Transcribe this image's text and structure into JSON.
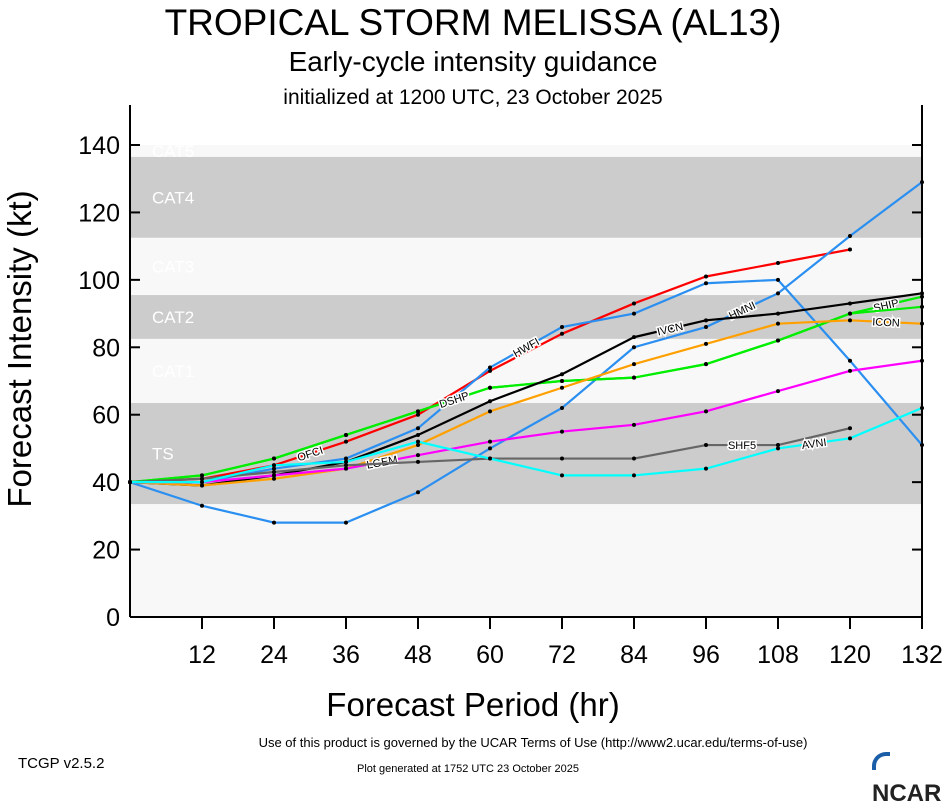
{
  "header": {
    "title": "TROPICAL STORM MELISSA (AL13)",
    "subtitle": "Early-cycle intensity guidance",
    "initialized": "initialized at 1200 UTC, 23 October 2025"
  },
  "footer": {
    "version": "TCGP v2.5.2",
    "terms": "Use of this product is governed by the UCAR Terms of Use (http://www2.ucar.edu/terms-of-use)",
    "generated": "Plot generated at 1752 UTC   23 October 2025",
    "logo": "NCAR"
  },
  "chart_data": {
    "type": "line",
    "xlabel": "Forecast Period (hr)",
    "ylabel": "Forecast Intensity (kt)",
    "xlim": [
      0,
      132
    ],
    "ylim": [
      0,
      140
    ],
    "xticks": [
      12,
      24,
      36,
      48,
      60,
      72,
      84,
      96,
      108,
      120,
      132
    ],
    "yticks": [
      0,
      20,
      40,
      60,
      80,
      100,
      120,
      140
    ],
    "bands": [
      {
        "label": "TS",
        "range": [
          34,
          63
        ],
        "color": "#cccccc"
      },
      {
        "label": "CAT1",
        "range": [
          64,
          82
        ],
        "color": "#f8f8f8"
      },
      {
        "label": "CAT2",
        "range": [
          83,
          95
        ],
        "color": "#cccccc"
      },
      {
        "label": "CAT3",
        "range": [
          96,
          112
        ],
        "color": "#f8f8f8"
      },
      {
        "label": "CAT4",
        "range": [
          113,
          136
        ],
        "color": "#cccccc"
      },
      {
        "label": "CAT5",
        "range": [
          137,
          140
        ],
        "color": "#f8f8f8"
      }
    ],
    "x": [
      0,
      12,
      24,
      36,
      48,
      60,
      72,
      84,
      96,
      108,
      120,
      132
    ],
    "series": [
      {
        "name": "OFCI",
        "color": "#ff0000",
        "values": [
          40,
          41,
          45,
          52,
          60,
          73,
          84,
          93,
          101,
          105,
          109,
          null
        ]
      },
      {
        "name": "HWFI",
        "color": "#2a8ff0",
        "values": [
          40,
          40,
          44,
          47,
          56,
          74,
          86,
          90,
          99,
          100,
          76,
          51
        ]
      },
      {
        "name": "HMNI",
        "color": "#2a8ff0",
        "values": [
          40,
          33,
          28,
          28,
          37,
          50,
          62,
          80,
          86,
          96,
          113,
          129
        ]
      },
      {
        "name": "SHIP",
        "color": "#00ee00",
        "values": [
          40,
          42,
          47,
          54,
          61,
          68,
          70,
          71,
          75,
          82,
          90,
          95
        ]
      },
      {
        "name": "DSHP",
        "color": "#00ee00",
        "values": [
          40,
          42,
          47,
          54,
          61,
          68,
          70,
          71,
          75,
          82,
          90,
          92
        ]
      },
      {
        "name": "IVCN",
        "color": "#000000",
        "values": [
          40,
          39,
          42,
          46,
          54,
          64,
          72,
          83,
          88,
          90,
          93,
          96
        ]
      },
      {
        "name": "ICON",
        "color": "#ffa000",
        "values": [
          40,
          39,
          41,
          44,
          51,
          61,
          68,
          75,
          81,
          87,
          88,
          87
        ]
      },
      {
        "name": "LGEM",
        "color": "#ff00ff",
        "values": [
          40,
          40,
          42,
          44,
          48,
          52,
          55,
          57,
          61,
          67,
          73,
          76
        ]
      },
      {
        "name": "SHF5",
        "color": "#666666",
        "values": [
          40,
          41,
          43,
          45,
          46,
          47,
          47,
          47,
          51,
          51,
          56,
          null
        ]
      },
      {
        "name": "AVNI",
        "color": "#00ffff",
        "values": [
          40,
          40,
          45,
          46,
          52,
          47,
          42,
          42,
          44,
          50,
          53,
          62
        ]
      }
    ]
  }
}
